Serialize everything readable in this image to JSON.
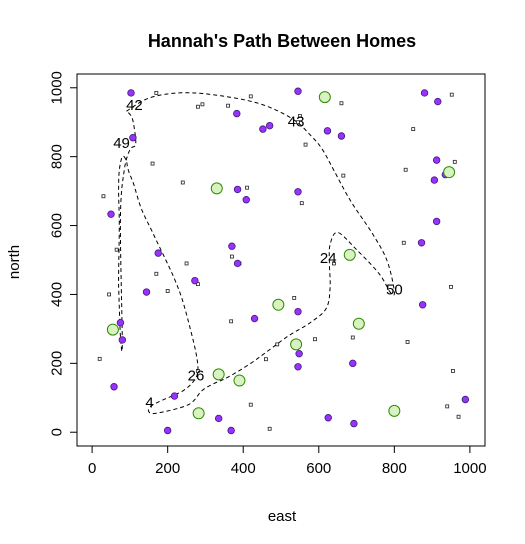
{
  "chart_data": {
    "type": "scatter",
    "title": "Hannah's Path Between Homes",
    "xlabel": "east",
    "ylabel": "north",
    "xlim": [
      -40,
      1040
    ],
    "ylim": [
      -40,
      1040
    ],
    "xticks": [
      "0",
      "200",
      "400",
      "600",
      "800",
      "1000"
    ],
    "yticks": [
      "0",
      "200",
      "400",
      "600",
      "800",
      "1000"
    ],
    "grid": false,
    "colors": {
      "purple_fill": "#9B30FF",
      "purple_stroke": "#3a1f7a",
      "green_fill": "#d9f2c2",
      "green_stroke": "#2e8b00",
      "small_stroke": "#222222",
      "path": "#000000"
    },
    "purple_points": [
      [
        103,
        985
      ],
      [
        545,
        990
      ],
      [
        880,
        985
      ],
      [
        915,
        960
      ],
      [
        383,
        925
      ],
      [
        452,
        880
      ],
      [
        470,
        890
      ],
      [
        623,
        875
      ],
      [
        660,
        860
      ],
      [
        108,
        855
      ],
      [
        912,
        790
      ],
      [
        906,
        732
      ],
      [
        935,
        748
      ],
      [
        385,
        705
      ],
      [
        408,
        675
      ],
      [
        545,
        698
      ],
      [
        50,
        633
      ],
      [
        912,
        612
      ],
      [
        370,
        540
      ],
      [
        385,
        490
      ],
      [
        175,
        520
      ],
      [
        872,
        550
      ],
      [
        144,
        407
      ],
      [
        272,
        440
      ],
      [
        430,
        330
      ],
      [
        545,
        350
      ],
      [
        875,
        370
      ],
      [
        75,
        318
      ],
      [
        80,
        268
      ],
      [
        540,
        260
      ],
      [
        548,
        228
      ],
      [
        690,
        200
      ],
      [
        58,
        132
      ],
      [
        545,
        190
      ],
      [
        218,
        105
      ],
      [
        988,
        95
      ],
      [
        625,
        42
      ],
      [
        335,
        40
      ],
      [
        200,
        5
      ],
      [
        368,
        5
      ],
      [
        693,
        25
      ]
    ],
    "green_points": [
      [
        616,
        973
      ],
      [
        330,
        708
      ],
      [
        945,
        755
      ],
      [
        682,
        515
      ],
      [
        493,
        370
      ],
      [
        706,
        315
      ],
      [
        55,
        298
      ],
      [
        540,
        255
      ],
      [
        335,
        168
      ],
      [
        390,
        150
      ],
      [
        282,
        55
      ],
      [
        800,
        62
      ]
    ],
    "small_points": [
      [
        170,
        985
      ],
      [
        280,
        945
      ],
      [
        292,
        952
      ],
      [
        420,
        975
      ],
      [
        360,
        948
      ],
      [
        550,
        918
      ],
      [
        545,
        900
      ],
      [
        660,
        955
      ],
      [
        952,
        980
      ],
      [
        850,
        880
      ],
      [
        565,
        835
      ],
      [
        665,
        745
      ],
      [
        830,
        762
      ],
      [
        960,
        785
      ],
      [
        30,
        685
      ],
      [
        160,
        780
      ],
      [
        240,
        725
      ],
      [
        410,
        710
      ],
      [
        555,
        665
      ],
      [
        65,
        530
      ],
      [
        250,
        490
      ],
      [
        370,
        510
      ],
      [
        390,
        490
      ],
      [
        170,
        460
      ],
      [
        280,
        430
      ],
      [
        640,
        490
      ],
      [
        825,
        550
      ],
      [
        45,
        400
      ],
      [
        200,
        410
      ],
      [
        535,
        390
      ],
      [
        950,
        422
      ],
      [
        368,
        322
      ],
      [
        690,
        275
      ],
      [
        490,
        255
      ],
      [
        460,
        212
      ],
      [
        20,
        213
      ],
      [
        835,
        262
      ],
      [
        590,
        270
      ],
      [
        955,
        178
      ],
      [
        280,
        178
      ],
      [
        420,
        80
      ],
      [
        940,
        75
      ],
      [
        970,
        45
      ],
      [
        470,
        10
      ]
    ],
    "path": [
      [
        91,
        932
      ],
      [
        150,
        970
      ],
      [
        230,
        985
      ],
      [
        320,
        980
      ],
      [
        440,
        955
      ],
      [
        530,
        910
      ],
      [
        580,
        860
      ],
      [
        610,
        820
      ],
      [
        640,
        760
      ],
      [
        685,
        670
      ],
      [
        740,
        580
      ],
      [
        780,
        500
      ],
      [
        800,
        410
      ],
      [
        790,
        405
      ],
      [
        760,
        460
      ],
      [
        700,
        530
      ],
      [
        650,
        580
      ],
      [
        630,
        545
      ],
      [
        628,
        490
      ],
      [
        630,
        420
      ],
      [
        620,
        360
      ],
      [
        580,
        320
      ],
      [
        520,
        280
      ],
      [
        470,
        240
      ],
      [
        420,
        200
      ],
      [
        360,
        160
      ],
      [
        320,
        140
      ],
      [
        290,
        120
      ],
      [
        255,
        80
      ],
      [
        170,
        55
      ],
      [
        150,
        60
      ],
      [
        155,
        75
      ],
      [
        180,
        90
      ],
      [
        240,
        120
      ],
      [
        270,
        150
      ],
      [
        280,
        180
      ],
      [
        275,
        230
      ],
      [
        260,
        300
      ],
      [
        240,
        380
      ],
      [
        220,
        440
      ],
      [
        195,
        500
      ],
      [
        160,
        580
      ],
      [
        130,
        650
      ],
      [
        110,
        720
      ],
      [
        96,
        760
      ],
      [
        90,
        790
      ],
      [
        80,
        800
      ],
      [
        72,
        760
      ],
      [
        70,
        700
      ],
      [
        72,
        600
      ],
      [
        70,
        450
      ],
      [
        71,
        400
      ],
      [
        75,
        280
      ],
      [
        80,
        260
      ],
      [
        75,
        620
      ],
      [
        85,
        760
      ],
      [
        100,
        820
      ],
      [
        115,
        835
      ],
      [
        112,
        880
      ],
      [
        105,
        915
      ],
      [
        92,
        932
      ]
    ],
    "node_labels": [
      {
        "text": "42",
        "x": 112,
        "y": 948
      },
      {
        "text": "43",
        "x": 540,
        "y": 900
      },
      {
        "text": "49",
        "x": 78,
        "y": 838
      },
      {
        "text": "24",
        "x": 625,
        "y": 505
      },
      {
        "text": "50",
        "x": 800,
        "y": 413
      },
      {
        "text": "26",
        "x": 275,
        "y": 163
      },
      {
        "text": "4",
        "x": 152,
        "y": 85
      }
    ]
  }
}
